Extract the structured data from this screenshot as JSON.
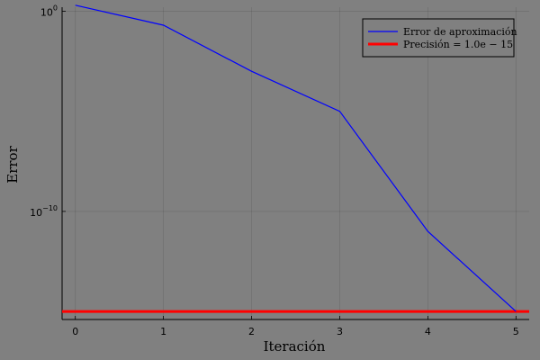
{
  "chart_data": {
    "type": "line",
    "title": "",
    "xlabel": "Iteración",
    "ylabel": "Error",
    "xlim": [
      -0.15,
      5.15
    ],
    "ylog": true,
    "ylim_log10": [
      -15.4,
      0.2
    ],
    "grid": true,
    "legend_position": "top-right",
    "x_ticks": [
      "0",
      "1",
      "2",
      "3",
      "4",
      "5"
    ],
    "y_ticks": [
      {
        "base": "10",
        "exp": "0",
        "value": 1
      },
      {
        "base": "10",
        "exp": "−10",
        "value": 1e-10
      }
    ],
    "series": [
      {
        "name": "Error de aproximación",
        "color": "#0000ff",
        "x": [
          0,
          1,
          2,
          3,
          4,
          5
        ],
        "y": [
          2,
          0.2,
          0.001,
          1e-05,
          1e-11,
          1e-15
        ]
      }
    ],
    "hlines": [
      {
        "name": "Precisión = 1.0e − 15",
        "color": "#ff0000",
        "y": 1e-15
      }
    ]
  }
}
